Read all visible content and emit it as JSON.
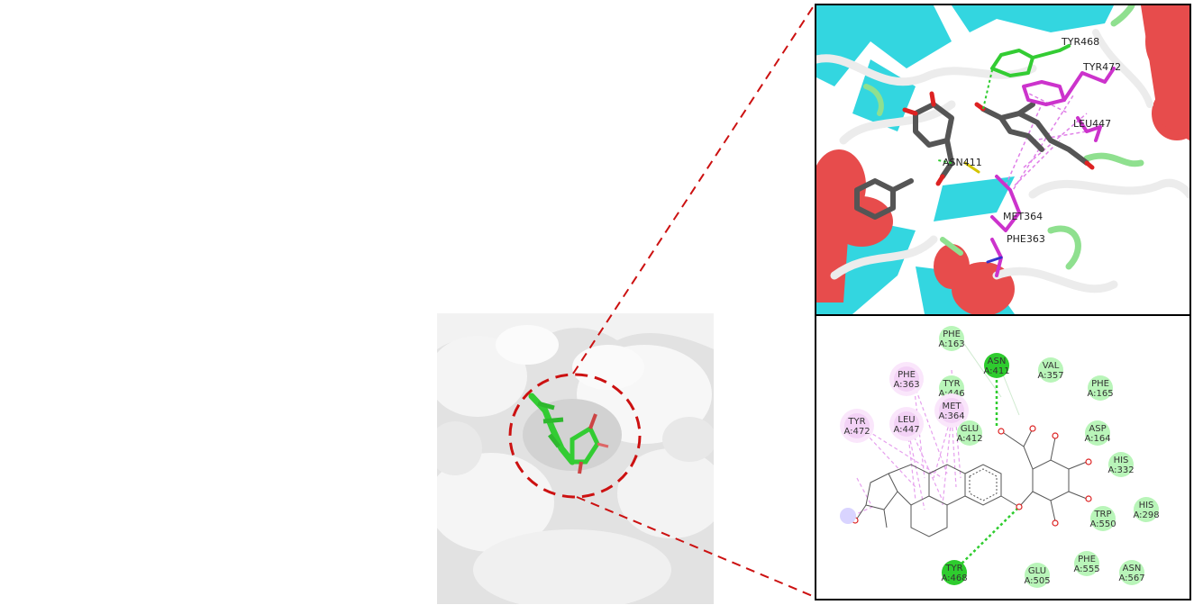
{
  "structure_3d": {
    "labels": [
      {
        "text": "TYR468",
        "type": "h-bond"
      },
      {
        "text": "TYR472",
        "type": "hydrophobic"
      },
      {
        "text": "LEU447",
        "type": "hydrophobic"
      },
      {
        "text": "ASN411",
        "type": "h-bond"
      },
      {
        "text": "MET364",
        "type": "hydrophobic"
      },
      {
        "text": "PHE363",
        "type": "hydrophobic"
      }
    ]
  },
  "interaction_2d": {
    "residues": [
      {
        "name": "PHE",
        "id": "A:163",
        "type": "vdw"
      },
      {
        "name": "ASN",
        "id": "A:411",
        "type": "h-bond"
      },
      {
        "name": "VAL",
        "id": "A:357",
        "type": "vdw"
      },
      {
        "name": "PHE",
        "id": "A:363",
        "type": "hydrophobic"
      },
      {
        "name": "TYR",
        "id": "A:446",
        "type": "vdw"
      },
      {
        "name": "PHE",
        "id": "A:165",
        "type": "vdw"
      },
      {
        "name": "MET",
        "id": "A:364",
        "type": "hydrophobic"
      },
      {
        "name": "TYR",
        "id": "A:472",
        "type": "hydrophobic"
      },
      {
        "name": "LEU",
        "id": "A:447",
        "type": "hydrophobic"
      },
      {
        "name": "GLU",
        "id": "A:412",
        "type": "vdw"
      },
      {
        "name": "ASP",
        "id": "A:164",
        "type": "vdw"
      },
      {
        "name": "HIS",
        "id": "A:332",
        "type": "vdw"
      },
      {
        "name": "TRP",
        "id": "A:550",
        "type": "vdw"
      },
      {
        "name": "HIS",
        "id": "A:298",
        "type": "vdw"
      },
      {
        "name": "TYR",
        "id": "A:468",
        "type": "h-bond"
      },
      {
        "name": "GLU",
        "id": "A:505",
        "type": "vdw"
      },
      {
        "name": "PHE",
        "id": "A:555",
        "type": "vdw"
      },
      {
        "name": "ASN",
        "id": "A:567",
        "type": "vdw"
      }
    ]
  },
  "colors": {
    "helix": "#e74c4c",
    "sheet": "#33d6e0",
    "coil": "#ececec",
    "ligand_3d": "#555555",
    "ligand_surface": "#33cc33",
    "hydrophobic": "#e080e8",
    "h_bond": "#2ecc2e",
    "vdw": "#b9f5b9",
    "zoom_lines": "#cc1111"
  }
}
